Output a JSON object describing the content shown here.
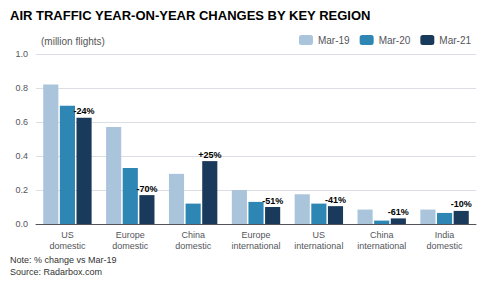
{
  "chart_data": {
    "type": "bar",
    "title": "AIR TRAFFIC YEAR-ON-YEAR CHANGES BY KEY REGION",
    "subtitle": "(million flights)",
    "note": "Note: % change vs Mar-19\nSource: Radarbox.com",
    "categories": [
      "US\ndomestic",
      "Europe\ndomestic",
      "China\ndomestic",
      "Europe\ninternational",
      "US\ninternational",
      "China\ninternational",
      "India\ndomestic"
    ],
    "series": [
      {
        "name": "Mar-19",
        "color": "#aac4dc",
        "values": [
          0.82,
          0.57,
          0.295,
          0.2,
          0.175,
          0.085,
          0.085
        ]
      },
      {
        "name": "Mar-20",
        "color": "#2e86b5",
        "values": [
          0.695,
          0.33,
          0.12,
          0.13,
          0.12,
          0.02,
          0.065
        ]
      },
      {
        "name": "Mar-21",
        "color": "#1a3a5c",
        "values": [
          0.625,
          0.17,
          0.37,
          0.1,
          0.105,
          0.033,
          0.077
        ],
        "annotations": [
          "-24%",
          "-70%",
          "+25%",
          "-51%",
          "-41%",
          "-61%",
          "-10%"
        ]
      }
    ],
    "ylim": [
      0,
      1.0
    ],
    "yticks": [
      {
        "value": 0.0,
        "label": "0.0"
      },
      0.2,
      0.4,
      0.6,
      0.8,
      {
        "value": 1.0,
        "label": "1.0"
      }
    ],
    "grid": true,
    "legend": "upper right"
  }
}
